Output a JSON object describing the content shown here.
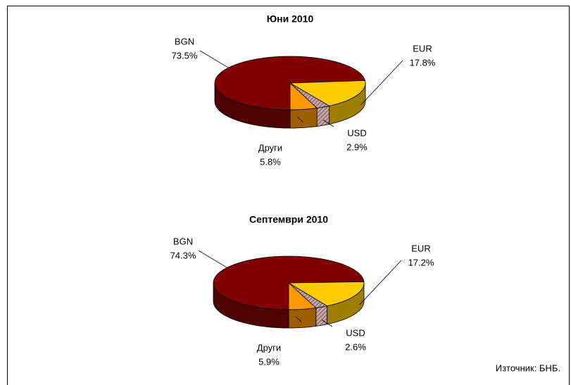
{
  "chart_data": [
    {
      "type": "pie3d",
      "title": "Юни 2010",
      "categories": [
        "BGN",
        "EUR",
        "USD",
        "Други"
      ],
      "values": [
        73.5,
        17.8,
        2.9,
        5.8
      ],
      "value_labels": [
        "73.5%",
        "17.8%",
        "2.9%",
        "5.8%"
      ],
      "colors": [
        "#800000",
        "#ffcc00",
        "#c9a4a4",
        "#ff9900"
      ]
    },
    {
      "type": "pie3d",
      "title": "Септември 2010",
      "categories": [
        "BGN",
        "EUR",
        "USD",
        "Други"
      ],
      "values": [
        74.3,
        17.2,
        2.6,
        5.9
      ],
      "value_labels": [
        "74.3%",
        "17.2%",
        "2.6%",
        "5.9%"
      ],
      "colors": [
        "#800000",
        "#ffcc00",
        "#c9a4a4",
        "#ff9900"
      ]
    }
  ],
  "source": "Източник: БНБ."
}
